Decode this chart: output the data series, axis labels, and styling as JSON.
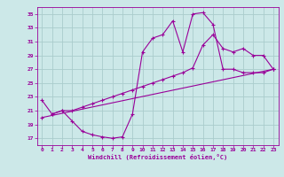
{
  "bg_color": "#cce8e8",
  "grid_color": "#aacccc",
  "line_color": "#990099",
  "xlabel": "Windchill (Refroidissement éolien,°C)",
  "xlim": [
    -0.5,
    23.5
  ],
  "ylim": [
    16,
    36
  ],
  "yticks": [
    17,
    19,
    21,
    23,
    25,
    27,
    29,
    31,
    33,
    35
  ],
  "xticks": [
    0,
    1,
    2,
    3,
    4,
    5,
    6,
    7,
    8,
    9,
    10,
    11,
    12,
    13,
    14,
    15,
    16,
    17,
    18,
    19,
    20,
    21,
    22,
    23
  ],
  "line1_x": [
    0,
    1,
    2,
    3,
    4,
    5,
    6,
    7,
    8,
    9,
    10,
    11,
    12,
    13,
    14,
    15,
    16,
    17,
    18,
    19,
    20,
    21,
    22,
    23
  ],
  "line1_y": [
    22.5,
    20.5,
    21.0,
    19.5,
    18.0,
    17.5,
    17.2,
    17.0,
    17.2,
    20.5,
    29.5,
    31.5,
    32.0,
    34.0,
    29.5,
    35.0,
    35.2,
    33.5,
    27.0,
    27.0,
    26.5,
    26.5,
    26.5,
    27.0
  ],
  "line2_x": [
    1,
    2,
    3,
    4,
    5,
    6,
    7,
    8,
    9,
    10,
    11,
    12,
    13,
    14,
    15,
    16,
    17,
    18,
    19,
    20,
    21,
    22,
    23
  ],
  "line2_y": [
    20.5,
    21.0,
    21.0,
    21.5,
    22.0,
    22.5,
    23.0,
    23.5,
    24.0,
    24.5,
    25.0,
    25.5,
    26.0,
    26.5,
    27.2,
    30.5,
    32.0,
    30.0,
    29.5,
    30.0,
    29.0,
    29.0,
    27.0
  ],
  "line3_x": [
    0,
    23
  ],
  "line3_y": [
    20.0,
    27.0
  ]
}
